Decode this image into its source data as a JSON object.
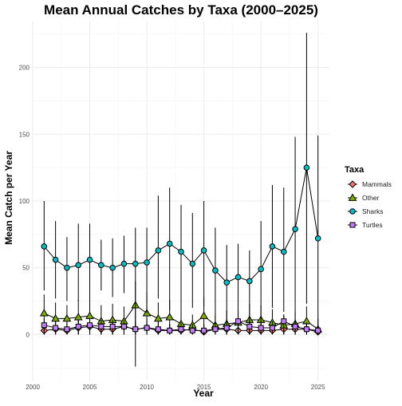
{
  "chart_data": {
    "type": "line",
    "title": "Mean Annual Catches by Taxa (2000–2025)",
    "xlabel": "Year",
    "ylabel": "Mean Catch per Year",
    "xlim": [
      2000,
      2026
    ],
    "ylim": [
      -35,
      235
    ],
    "xticks": [
      2000,
      2005,
      2010,
      2015,
      2020,
      2025
    ],
    "yticks": [
      0,
      50,
      100,
      150,
      200
    ],
    "grid": true,
    "legend": {
      "title": "Taxa",
      "position": "right"
    },
    "x": [
      2001,
      2002,
      2003,
      2004,
      2005,
      2006,
      2007,
      2008,
      2009,
      2010,
      2011,
      2012,
      2013,
      2014,
      2015,
      2016,
      2017,
      2018,
      2019,
      2020,
      2021,
      2022,
      2023,
      2024,
      2025
    ],
    "series": [
      {
        "name": "Mammals",
        "marker": "diamond",
        "color": "#F8766D",
        "values": [
          3,
          4,
          3,
          5,
          6,
          4,
          4,
          6,
          4,
          5,
          3,
          3,
          3,
          4,
          2,
          4,
          4,
          3,
          3,
          3,
          3,
          4,
          4,
          4,
          2
        ],
        "lower": [
          0,
          0,
          0,
          0,
          0,
          0,
          0,
          0,
          0,
          0,
          0,
          0,
          0,
          0,
          0,
          0,
          0,
          0,
          0,
          0,
          0,
          0,
          0,
          0,
          0
        ],
        "upper": [
          8,
          10,
          9,
          12,
          14,
          11,
          11,
          13,
          10,
          12,
          9,
          8,
          9,
          11,
          7,
          10,
          11,
          9,
          9,
          10,
          9,
          11,
          11,
          12,
          7
        ]
      },
      {
        "name": "Other",
        "marker": "triangle",
        "color": "#7CAE00",
        "values": [
          16,
          12,
          12,
          13,
          14,
          10,
          11,
          10,
          22,
          16,
          12,
          13,
          8,
          7,
          14,
          7,
          8,
          9,
          11,
          11,
          9,
          7,
          8,
          10,
          4
        ],
        "lower": [
          2,
          0,
          0,
          0,
          0,
          0,
          0,
          0,
          2,
          0,
          0,
          0,
          0,
          0,
          0,
          0,
          0,
          0,
          0,
          0,
          0,
          0,
          0,
          0,
          0
        ],
        "upper": [
          30,
          24,
          22,
          26,
          28,
          22,
          23,
          21,
          40,
          32,
          24,
          26,
          17,
          15,
          28,
          15,
          18,
          18,
          23,
          22,
          19,
          15,
          17,
          21,
          12
        ]
      },
      {
        "name": "Sharks",
        "marker": "circle",
        "color": "#00BFC4",
        "values": [
          66,
          56,
          50,
          52,
          56,
          52,
          50,
          53,
          53,
          54,
          63,
          68,
          62,
          53,
          63,
          48,
          39,
          43,
          40,
          49,
          66,
          62,
          79,
          125,
          72
        ],
        "lower": [
          33,
          27,
          25,
          25,
          28,
          33,
          28,
          31,
          -24,
          16,
          27,
          18,
          17,
          20,
          21,
          7,
          4,
          10,
          0,
          7,
          20,
          17,
          0,
          23,
          8
        ],
        "upper": [
          100,
          85,
          73,
          83,
          83,
          71,
          72,
          74,
          80,
          80,
          104,
          110,
          97,
          91,
          100,
          80,
          67,
          68,
          63,
          85,
          112,
          110,
          148,
          226,
          149
        ]
      },
      {
        "name": "Turtles",
        "marker": "square",
        "color": "#C77CFF",
        "values": [
          7,
          5,
          4,
          6,
          7,
          6,
          6,
          6,
          4,
          5,
          4,
          3,
          4,
          3,
          3,
          4,
          5,
          10,
          6,
          5,
          5,
          10,
          6,
          4,
          3
        ],
        "lower": [
          0,
          0,
          0,
          0,
          0,
          0,
          0,
          0,
          0,
          0,
          0,
          0,
          0,
          0,
          0,
          0,
          0,
          0,
          0,
          0,
          0,
          0,
          0,
          0,
          0
        ],
        "upper": [
          12,
          10,
          9,
          11,
          12,
          11,
          11,
          11,
          9,
          10,
          9,
          8,
          9,
          8,
          8,
          9,
          10,
          16,
          11,
          10,
          10,
          15,
          11,
          9,
          8
        ]
      }
    ]
  }
}
